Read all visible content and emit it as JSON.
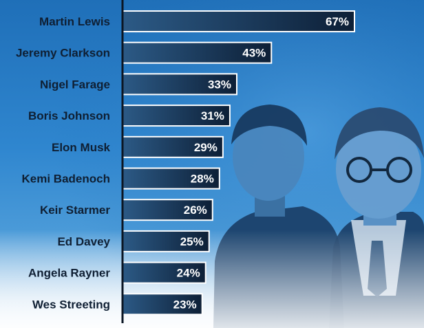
{
  "colors": {
    "bar_fill_start": "#2c5a86",
    "bar_fill_end": "#0d1f36",
    "bar_border": "#ffffff",
    "axis": "#0b1624",
    "background_top": "#1f6fb8",
    "background_bottom": "#eef5fb"
  },
  "chart_data": {
    "type": "bar",
    "orientation": "horizontal",
    "categories": [
      "Martin Lewis",
      "Jeremy Clarkson",
      "Nigel Farage",
      "Boris Johnson",
      "Elon Musk",
      "Kemi Badenoch",
      "Keir Starmer",
      "Ed Davey",
      "Angela Rayner",
      "Wes Streeting"
    ],
    "values": [
      67,
      43,
      33,
      31,
      29,
      28,
      26,
      25,
      24,
      23
    ],
    "value_labels": [
      "67%",
      "43%",
      "33%",
      "31%",
      "29%",
      "28%",
      "26%",
      "25%",
      "24%",
      "23%"
    ],
    "unit": "%",
    "title": "",
    "xlabel": "",
    "ylabel": "",
    "xlim": [
      0,
      68
    ],
    "grid": false,
    "legend": "none"
  }
}
